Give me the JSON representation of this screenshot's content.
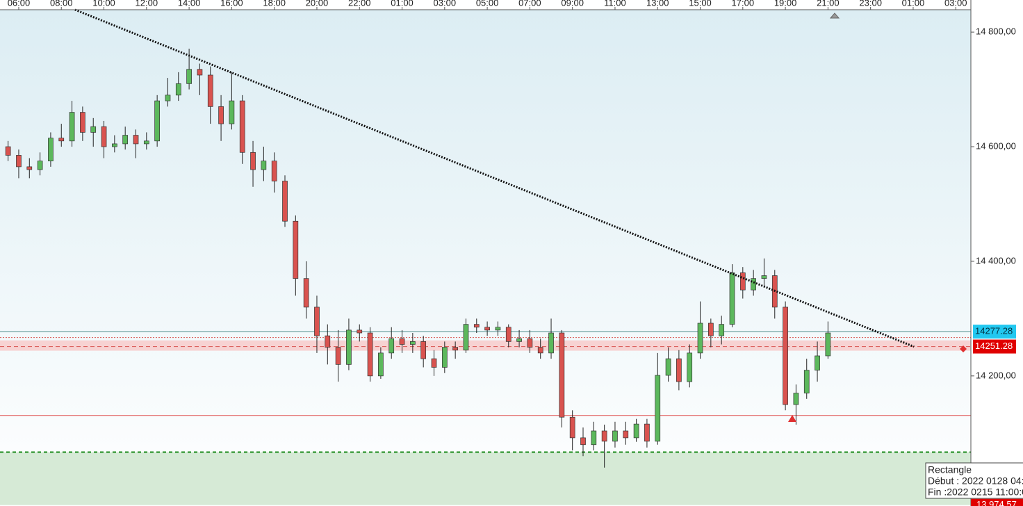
{
  "chart_data": {
    "type": "candlestick",
    "x": [
      0.5,
      1,
      1.5,
      2,
      2.5,
      3,
      3.5,
      4,
      4.5,
      5,
      5.5,
      6,
      6.5,
      7,
      7.5,
      8,
      8.5,
      9,
      9.5,
      10,
      10.5,
      11,
      11.5,
      12,
      12.5,
      13,
      13.5,
      14,
      14.5,
      15,
      15.5,
      16,
      16.5,
      17,
      17.5,
      18,
      18.5,
      19,
      19.5,
      20,
      20.5,
      21,
      21.5,
      22,
      22.5,
      23,
      23.5,
      24,
      24.5,
      25,
      25.5,
      26,
      26.5,
      27,
      27.5,
      28,
      28.5,
      29,
      29.5,
      30,
      30.5,
      31,
      31.5,
      32,
      32.5,
      33,
      33.5,
      34,
      34.5,
      35,
      35.5,
      36,
      36.5,
      37,
      37.5,
      38,
      38.5,
      39
    ],
    "open": [
      14600,
      14585,
      14565,
      14560,
      14575,
      14615,
      14610,
      14660,
      14625,
      14635,
      14600,
      14605,
      14620,
      14605,
      14610,
      14680,
      14690,
      14710,
      14735,
      14725,
      14670,
      14640,
      14680,
      14590,
      14560,
      14575,
      14540,
      14470,
      14370,
      14320,
      14270,
      14250,
      14220,
      14280,
      14275,
      14200,
      14240,
      14265,
      14255,
      14260,
      14230,
      14215,
      14250,
      14245,
      14290,
      14285,
      14280,
      14285,
      14260,
      14265,
      14250,
      14240,
      14275,
      14128,
      14092,
      14080,
      14104,
      14086,
      14104,
      14092,
      14116,
      14086,
      14201,
      14230,
      14190,
      14240,
      14292,
      14270,
      14290,
      14380,
      14350,
      14370,
      14375,
      14320,
      14150,
      14170,
      14210,
      14235
    ],
    "high": [
      14610,
      14595,
      14580,
      14590,
      14625,
      14640,
      14680,
      14670,
      14650,
      14645,
      14620,
      14635,
      14630,
      14625,
      14690,
      14720,
      14730,
      14771,
      14745,
      14740,
      14690,
      14730,
      14690,
      14610,
      14600,
      14590,
      14550,
      14480,
      14400,
      14340,
      14290,
      14280,
      14300,
      14290,
      14285,
      14250,
      14285,
      14280,
      14275,
      14270,
      14245,
      14260,
      14260,
      14300,
      14300,
      14295,
      14295,
      14290,
      14280,
      14280,
      14265,
      14300,
      14280,
      14140,
      14110,
      14120,
      14115,
      14120,
      14120,
      14125,
      14125,
      14240,
      14250,
      14245,
      14255,
      14330,
      14300,
      14305,
      14395,
      14390,
      14385,
      14405,
      14385,
      14330,
      14185,
      14230,
      14260,
      14295
    ],
    "low": [
      14575,
      14545,
      14545,
      14550,
      14565,
      14600,
      14600,
      14610,
      14600,
      14580,
      14590,
      14595,
      14580,
      14595,
      14600,
      14670,
      14680,
      14700,
      14690,
      14640,
      14610,
      14630,
      14570,
      14530,
      14540,
      14520,
      14460,
      14340,
      14300,
      14240,
      14220,
      14190,
      14210,
      14260,
      14190,
      14195,
      14230,
      14240,
      14240,
      14215,
      14200,
      14205,
      14230,
      14240,
      14275,
      14270,
      14270,
      14250,
      14250,
      14240,
      14230,
      14230,
      14110,
      14070,
      14060,
      14070,
      14040,
      14075,
      14080,
      14085,
      14075,
      14080,
      14190,
      14175,
      14180,
      14230,
      14250,
      14255,
      14285,
      14335,
      14340,
      14355,
      14300,
      14140,
      14115,
      14160,
      14190,
      14230
    ],
    "close": [
      14585,
      14565,
      14560,
      14575,
      14615,
      14610,
      14660,
      14625,
      14635,
      14600,
      14605,
      14620,
      14605,
      14610,
      14680,
      14690,
      14710,
      14735,
      14725,
      14670,
      14640,
      14680,
      14590,
      14560,
      14575,
      14540,
      14470,
      14370,
      14320,
      14270,
      14250,
      14220,
      14280,
      14275,
      14200,
      14240,
      14265,
      14255,
      14260,
      14230,
      14215,
      14250,
      14245,
      14290,
      14285,
      14280,
      14285,
      14260,
      14265,
      14250,
      14240,
      14275,
      14128,
      14092,
      14080,
      14104,
      14086,
      14104,
      14092,
      14116,
      14086,
      14201,
      14230,
      14190,
      14240,
      14292,
      14270,
      14290,
      14380,
      14350,
      14370,
      14375,
      14320,
      14150,
      14170,
      14210,
      14235,
      14275
    ],
    "up_color": "#5cb85c",
    "down_color": "#d9534f",
    "xlim": [
      0.12,
      45.71
    ],
    "xticks": [
      {
        "value": 1,
        "label": "06:00"
      },
      {
        "value": 3,
        "label": "08:00"
      },
      {
        "value": 5,
        "label": "10:00"
      },
      {
        "value": 7,
        "label": "12:00"
      },
      {
        "value": 9,
        "label": "14:00"
      },
      {
        "value": 11,
        "label": "16:00"
      },
      {
        "value": 13,
        "label": "18:00"
      },
      {
        "value": 15,
        "label": "20:00"
      },
      {
        "value": 17,
        "label": "22:00"
      },
      {
        "value": 19,
        "label": "01:00"
      },
      {
        "value": 21,
        "label": "03:00"
      },
      {
        "value": 23,
        "label": "05:00"
      },
      {
        "value": 25,
        "label": "07:00"
      },
      {
        "value": 27,
        "label": "09:00"
      },
      {
        "value": 29,
        "label": "11:00"
      },
      {
        "value": 31,
        "label": "13:00"
      },
      {
        "value": 33,
        "label": "15:00"
      },
      {
        "value": 35,
        "label": "17:00"
      },
      {
        "value": 37,
        "label": "19:00"
      },
      {
        "value": 39,
        "label": "21:00"
      },
      {
        "value": 41,
        "label": "23:00"
      },
      {
        "value": 43,
        "label": "01:00"
      },
      {
        "value": 45,
        "label": "03:00"
      }
    ],
    "ylim": [
      13973,
      14839
    ],
    "yticks": [
      {
        "value": 14800,
        "label": "14 800,00"
      },
      {
        "value": 14600,
        "label": "14 600,00"
      },
      {
        "value": 14400,
        "label": "14 400,00"
      },
      {
        "value": 14200,
        "label": "14 200,00"
      }
    ],
    "band": {
      "top": 14262,
      "bottom": 14244,
      "color": "#f8c8c8"
    },
    "levels": [
      {
        "value": 14277.28,
        "label": "14277.28",
        "color": "#4a8a8a",
        "label_color": "#22c8f0",
        "style": "solid"
      },
      {
        "value": 14267,
        "color": "#d9534f",
        "style": "dotted"
      },
      {
        "value": 14251.28,
        "label": "14251.28",
        "color": "#d9534f",
        "label_color": "#e00000",
        "style": "dashed"
      },
      {
        "value": 14131,
        "color": "#e05050",
        "style": "solid"
      }
    ],
    "trendline": {
      "start": [
        3.64,
        14839
      ],
      "end": [
        43.04,
        14251
      ]
    },
    "rectangle": {
      "top": 14067,
      "bottom": 13974.57,
      "bottom_label": "13 974,57",
      "color": "#d6ead6",
      "edge_color": "#1a8a1a",
      "tooltip": {
        "title": "Rectangle",
        "start": "Début : 2022 0128 04:",
        "end": "Fin :2022 0215 11:00:0"
      }
    }
  }
}
